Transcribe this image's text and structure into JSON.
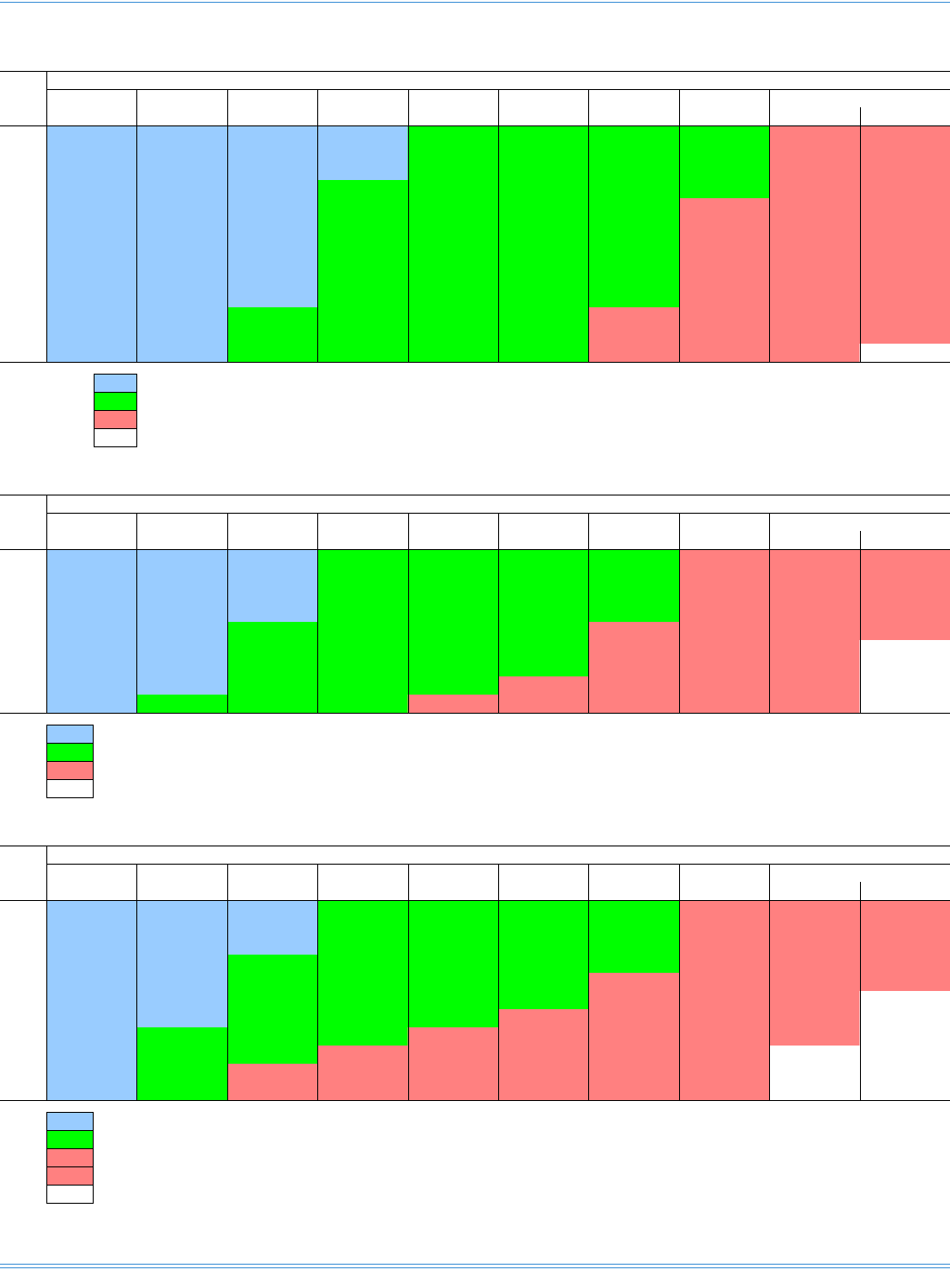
{
  "tables": [
    {
      "columns": [
        [
          {
            "color": "#99ccff",
            "value": 13
          }
        ],
        [
          {
            "color": "#99ccff",
            "value": 13
          }
        ],
        [
          {
            "color": "#99ccff",
            "value": 10
          },
          {
            "color": "#00ff00",
            "value": 3
          }
        ],
        [
          {
            "color": "#99ccff",
            "value": 3
          },
          {
            "color": "#00ff00",
            "value": 10
          }
        ],
        [
          {
            "color": "#00ff00",
            "value": 13
          }
        ],
        [
          {
            "color": "#00ff00",
            "value": 13
          }
        ],
        [
          {
            "color": "#00ff00",
            "value": 10
          },
          {
            "color": "#ff8080",
            "value": 3
          }
        ],
        [
          {
            "color": "#00ff00",
            "value": 4
          },
          {
            "color": "#ff8080",
            "value": 9
          }
        ],
        [
          {
            "color": "#ff8080",
            "value": 13
          }
        ],
        [
          {
            "color": "#ff8080",
            "value": 12
          },
          {
            "color": "#ffffff",
            "value": 1
          }
        ]
      ],
      "legend": [
        "#99ccff",
        "#00ff00",
        "#ff8080",
        "#ffffff"
      ]
    },
    {
      "columns": [
        [
          {
            "color": "#99ccff",
            "value": 9
          }
        ],
        [
          {
            "color": "#99ccff",
            "value": 8
          },
          {
            "color": "#00ff00",
            "value": 1
          }
        ],
        [
          {
            "color": "#99ccff",
            "value": 4
          },
          {
            "color": "#00ff00",
            "value": 5
          }
        ],
        [
          {
            "color": "#00ff00",
            "value": 9
          }
        ],
        [
          {
            "color": "#00ff00",
            "value": 8
          },
          {
            "color": "#ff8080",
            "value": 1
          }
        ],
        [
          {
            "color": "#00ff00",
            "value": 7
          },
          {
            "color": "#ff8080",
            "value": 2
          }
        ],
        [
          {
            "color": "#00ff00",
            "value": 4
          },
          {
            "color": "#ff8080",
            "value": 5
          }
        ],
        [
          {
            "color": "#ff8080",
            "value": 9
          }
        ],
        [
          {
            "color": "#ff8080",
            "value": 9
          }
        ],
        [
          {
            "color": "#ff8080",
            "value": 5
          },
          {
            "color": "#ffffff",
            "value": 4
          }
        ]
      ],
      "legend": [
        "#99ccff",
        "#00ff00",
        "#ff8080",
        "#ffffff"
      ]
    },
    {
      "columns": [
        [
          {
            "color": "#99ccff",
            "value": 11
          }
        ],
        [
          {
            "color": "#99ccff",
            "value": 7
          },
          {
            "color": "#00ff00",
            "value": 4
          }
        ],
        [
          {
            "color": "#99ccff",
            "value": 3
          },
          {
            "color": "#00ff00",
            "value": 6
          },
          {
            "color": "#ff8080",
            "value": 2
          }
        ],
        [
          {
            "color": "#00ff00",
            "value": 8
          },
          {
            "color": "#ff8080",
            "value": 3
          }
        ],
        [
          {
            "color": "#00ff00",
            "value": 7
          },
          {
            "color": "#ff8080",
            "value": 4
          }
        ],
        [
          {
            "color": "#00ff00",
            "value": 6
          },
          {
            "color": "#ff8080",
            "value": 5
          }
        ],
        [
          {
            "color": "#00ff00",
            "value": 4
          },
          {
            "color": "#ff8080",
            "value": 7
          }
        ],
        [
          {
            "color": "#ff8080",
            "value": 11
          }
        ],
        [
          {
            "color": "#ff8080",
            "value": 8
          },
          {
            "color": "#ffffff",
            "value": 3
          }
        ],
        [
          {
            "color": "#ff8080",
            "value": 5
          },
          {
            "color": "#ffffff",
            "value": 6
          }
        ]
      ],
      "legend": [
        "#99ccff",
        "#00ff00",
        "#ff8080",
        "#ff8080",
        "#ffffff"
      ]
    }
  ]
}
